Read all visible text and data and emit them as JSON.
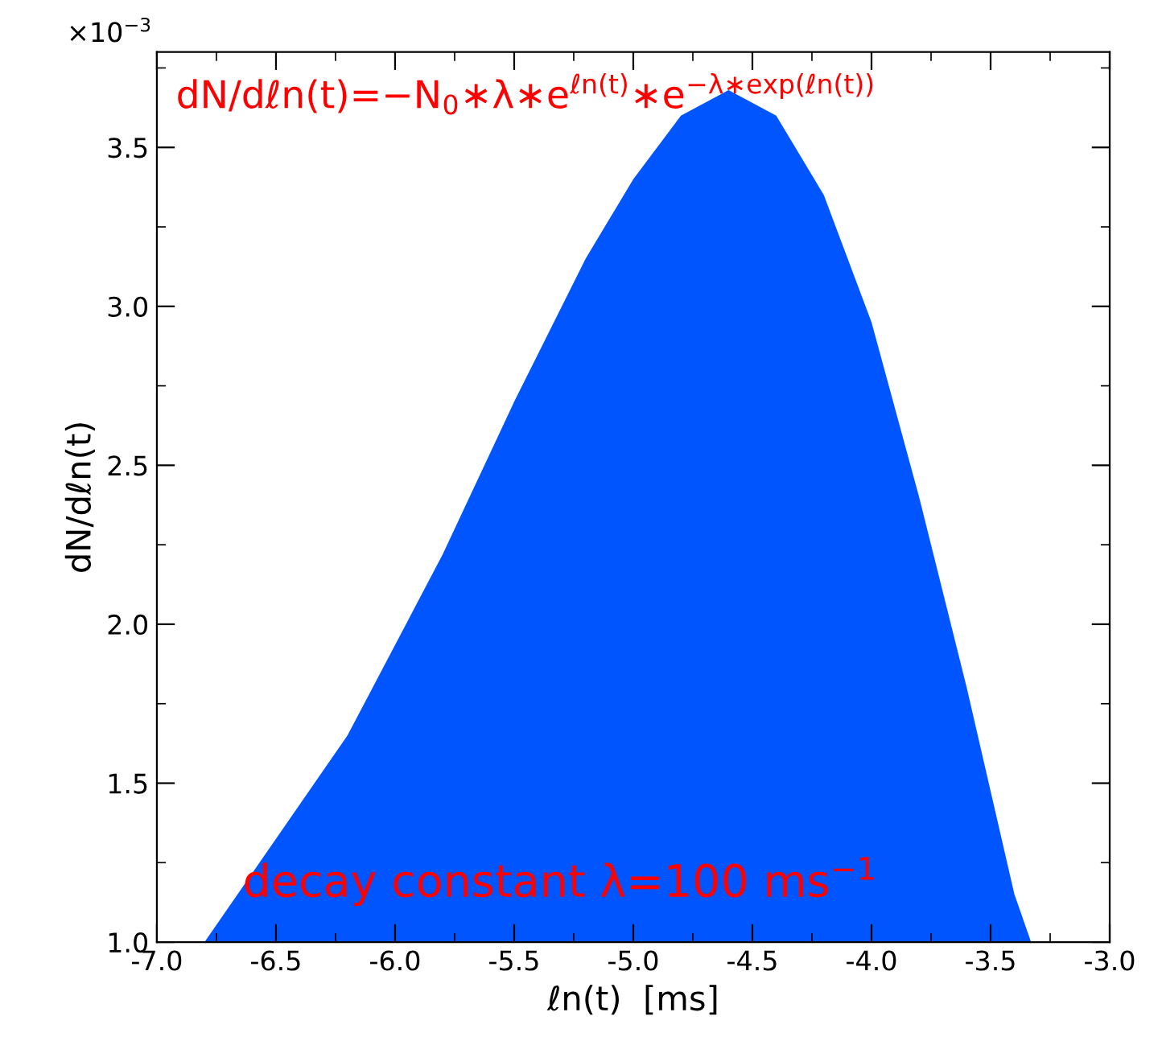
{
  "chart_data": {
    "type": "area",
    "xlabel": "ℓn(t)  [ms]",
    "ylabel": "dN/dℓn(t)",
    "annotations": [
      "×10$^{−3}$",
      "dN/dℓn(t)=−N$_{0}$∗λ∗e$^{ℓn(t)}$∗e$^{−λ∗exp(ℓn(t))}$",
      "decay constant λ=100 ms$^{−1}$"
    ],
    "x": [
      -6.8,
      -6.2,
      -5.8,
      -5.5,
      -5.2,
      -5.0,
      -4.8,
      -4.6,
      -4.4,
      -4.2,
      -4.0,
      -3.8,
      -3.6,
      -3.4,
      -3.33
    ],
    "series": [
      {
        "color": "#0055ff",
        "values": [
          1.0,
          1.65,
          2.22,
          2.7,
          3.15,
          3.4,
          3.6,
          3.68,
          3.6,
          3.35,
          2.95,
          2.4,
          1.8,
          1.15,
          1.0
        ]
      }
    ],
    "xlim": [
      -7.0,
      -3.0
    ],
    "xticks": [
      {
        "value": -7,
        "label": "-7.0"
      },
      {
        "value": -6.5,
        "label": "-6.5"
      },
      {
        "value": -6,
        "label": "-6.0"
      },
      {
        "value": -5.5,
        "label": "-5.5"
      },
      {
        "value": -5,
        "label": "-5.0"
      },
      {
        "value": -4.5,
        "label": "-4.5"
      },
      {
        "value": -4,
        "label": "-4.0"
      },
      {
        "value": -3.5,
        "label": "-3.5"
      },
      {
        "value": -3,
        "label": "-3.0"
      }
    ],
    "ylim": [
      1.0,
      3.8
    ],
    "yticks": [
      {
        "value": 1,
        "label": "1.0"
      },
      {
        "value": 1.5,
        "label": "1.5"
      },
      {
        "value": 2,
        "label": "2.0"
      },
      {
        "value": 2.5,
        "label": "2.5"
      },
      {
        "value": 3,
        "label": "3.0"
      },
      {
        "value": 3.5,
        "label": "3.5"
      }
    ],
    "grid": false,
    "legend": false
  }
}
